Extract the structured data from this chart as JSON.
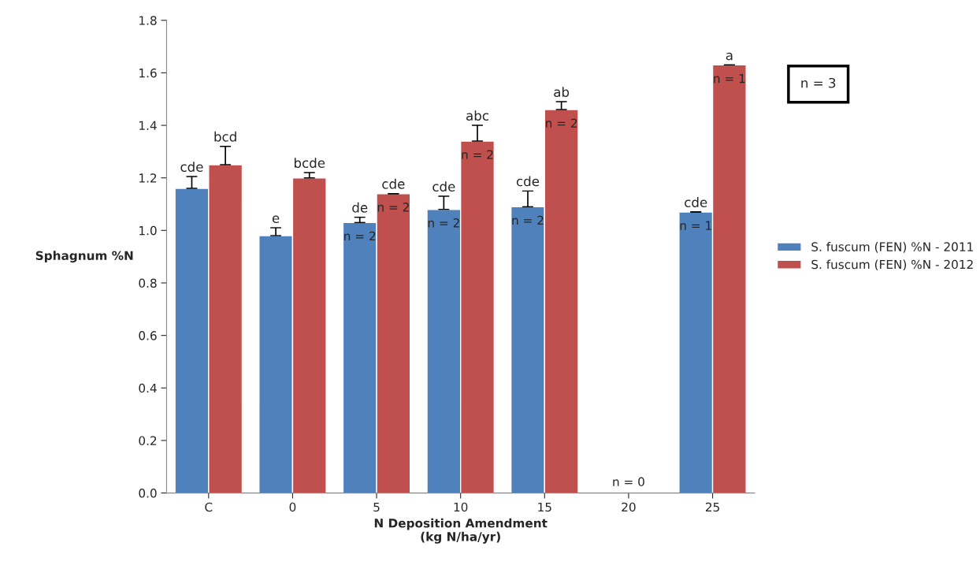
{
  "chart_data": {
    "type": "bar",
    "xlabel": "N Deposition Amendment\n(kg N/ha/yr)",
    "ylabel": "Sphagnum %N",
    "categories": [
      "C",
      "0",
      "5",
      "10",
      "15",
      "20",
      "25"
    ],
    "series": [
      {
        "name": "S. fuscum (FEN) %N - 2011",
        "color": "#4f81bd",
        "values": [
          1.16,
          0.98,
          1.03,
          1.08,
          1.09,
          null,
          1.07
        ],
        "errors": [
          [
            1.16,
            1.205
          ],
          [
            0.98,
            1.01
          ],
          [
            1.03,
            1.05
          ],
          [
            1.08,
            1.13
          ],
          [
            1.09,
            1.15
          ],
          null,
          [
            1.07,
            1.07
          ]
        ],
        "value_labels": [
          "cde",
          "e",
          "de",
          "cde",
          "cde",
          null,
          "cde"
        ]
      },
      {
        "name": "S. fuscum (FEN) %N - 2012",
        "color": "#c0504d",
        "values": [
          1.25,
          1.2,
          1.14,
          1.34,
          1.46,
          null,
          1.63
        ],
        "errors": [
          [
            1.25,
            1.32
          ],
          [
            1.2,
            1.22
          ],
          [
            1.14,
            1.14
          ],
          [
            1.34,
            1.4
          ],
          [
            1.46,
            1.49
          ],
          null,
          [
            1.63,
            1.63
          ]
        ],
        "value_labels": [
          "bcd",
          "bcde",
          "cde",
          "abc",
          "ab",
          null,
          "a"
        ]
      }
    ],
    "ylim": [
      0,
      1.8
    ],
    "yticks": [
      {
        "value": 0,
        "label": "0.0"
      },
      {
        "value": 0.2,
        "label": "0.2"
      },
      {
        "value": 0.4,
        "label": "0.4"
      },
      {
        "value": 0.6,
        "label": "0.6"
      },
      {
        "value": 0.8,
        "label": "0.8"
      },
      {
        "value": 1.0,
        "label": "1.0"
      },
      {
        "value": 1.2,
        "label": "1.2"
      },
      {
        "value": 1.4,
        "label": "1.4"
      },
      {
        "value": 1.6,
        "label": "1.6"
      },
      {
        "value": 1.8,
        "label": "1.8"
      }
    ],
    "annotations": [
      {
        "text": "n = 2",
        "x": "5",
        "y": 1.03
      },
      {
        "text": "n = 2",
        "x": "5",
        "y": 1.14
      },
      {
        "text": "n = 2",
        "x": "10",
        "y": 1.08
      },
      {
        "text": "n = 2",
        "x": "10",
        "y": 1.34
      },
      {
        "text": "n = 2",
        "x": "15",
        "y": 1.09
      },
      {
        "text": "n = 2",
        "x": "15",
        "y": 1.46
      },
      {
        "text": "n = 1",
        "x": "25",
        "y": 1.07
      },
      {
        "text": "n = 1",
        "x": "25",
        "y": 1.63
      },
      "n = 0",
      "n = 3"
    ],
    "grid": false,
    "legend": "right"
  }
}
